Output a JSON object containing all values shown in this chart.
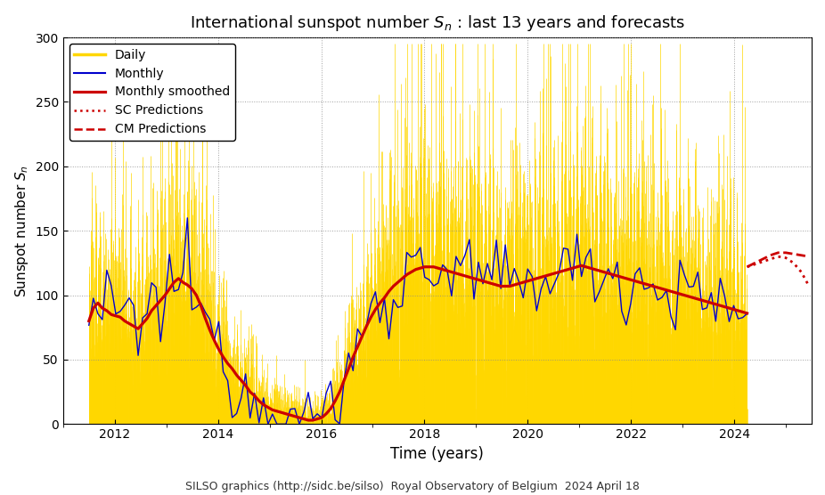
{
  "title": "International sunspot number $S_n$ : last 13 years and forecasts",
  "xlabel": "Time (years)",
  "ylabel": "Sunspot number $S_n$",
  "footer": "SILSO graphics (http://sidc.be/silso)  Royal Observatory of Belgium  2024 April 18",
  "xlim": [
    2011.0,
    2025.5
  ],
  "ylim": [
    0,
    300
  ],
  "yticks": [
    0,
    50,
    100,
    150,
    200,
    250,
    300
  ],
  "xticks": [
    2012,
    2014,
    2016,
    2018,
    2020,
    2022,
    2024
  ],
  "background_color": "#ffffff",
  "grid_color": "#888888",
  "daily_color": "#FFD700",
  "monthly_color": "#0000CC",
  "smoothed_color": "#CC0000",
  "pred_color": "#CC0000",
  "daily_linewidth": 0.5,
  "monthly_linewidth": 1.0,
  "smoothed_linewidth": 2.3,
  "pred_linewidth": 2.0,
  "legend_fontsize": 10,
  "tick_fontsize": 10,
  "title_fontsize": 13,
  "xlabel_fontsize": 12,
  "ylabel_fontsize": 11,
  "smoothed_monthly": [
    80,
    90,
    94,
    90,
    88,
    85,
    84,
    83,
    80,
    78,
    76,
    74,
    78,
    82,
    88,
    92,
    96,
    100,
    105,
    110,
    113,
    110,
    108,
    105,
    100,
    92,
    82,
    73,
    65,
    58,
    52,
    47,
    43,
    38,
    34,
    30,
    25,
    22,
    18,
    15,
    13,
    11,
    10,
    9,
    8,
    7,
    6,
    5,
    4,
    3,
    3,
    4,
    5,
    8,
    12,
    18,
    25,
    34,
    43,
    52,
    60,
    68,
    76,
    83,
    89,
    94,
    98,
    103,
    107,
    110,
    113,
    116,
    118,
    120,
    121,
    122,
    122,
    122,
    121,
    120,
    119,
    118,
    117,
    116,
    115,
    114,
    113,
    112,
    111,
    110,
    109,
    108,
    107,
    107,
    107,
    108,
    109,
    110,
    111,
    112,
    113,
    114,
    115,
    116,
    117,
    118,
    119,
    120,
    121,
    122,
    123,
    122,
    121,
    120,
    119,
    118,
    117,
    116,
    115,
    114,
    113,
    112,
    111,
    110,
    109,
    108,
    107,
    106,
    105,
    104,
    103,
    102,
    101,
    100,
    99,
    98,
    97,
    96,
    95,
    94,
    93,
    92,
    91,
    90,
    89,
    88,
    87,
    86
  ],
  "t_smooth_start": 2011.5,
  "t_smooth_end": 2024.25,
  "sc_pred_t": [
    2024.25,
    2024.4,
    2024.55,
    2024.7,
    2024.85,
    2025.0,
    2025.15,
    2025.3,
    2025.45
  ],
  "sc_pred_v": [
    122,
    124,
    126,
    128,
    130,
    129,
    125,
    118,
    107
  ],
  "cm_pred_t": [
    2024.25,
    2024.4,
    2024.55,
    2024.7,
    2024.85,
    2025.0,
    2025.15,
    2025.3,
    2025.45
  ],
  "cm_pred_v": [
    122,
    125,
    128,
    131,
    133,
    133,
    132,
    131,
    130
  ]
}
